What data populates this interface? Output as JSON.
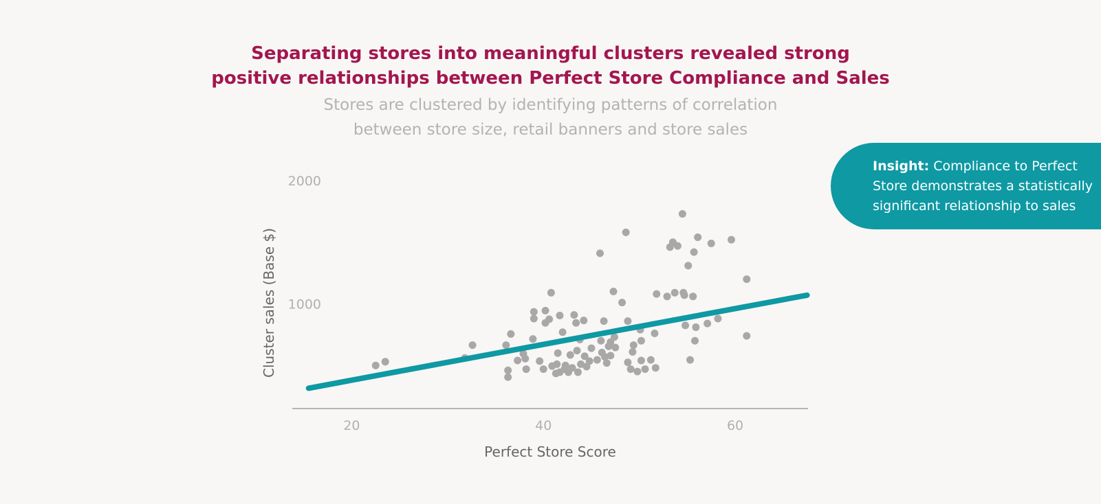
{
  "header": {
    "title_line1": "Separating stores into meaningful clusters revealed strong",
    "title_line2": "positive relationships between Perfect Store Compliance and Sales",
    "subtitle_line1": "Stores are clustered by identifying patterns of correlation",
    "subtitle_line2": "between store size, retail banners and store sales"
  },
  "insight": {
    "bold": "Insight:",
    "text": " Compliance to Perfect Store demonstrates a statistically significant relationship to sales"
  },
  "colors": {
    "title": "#a3164f",
    "points": "#a8a8a8",
    "trendline": "#0e99a3",
    "insight_bg": "#0e99a3"
  },
  "chart_data": {
    "type": "scatter",
    "xlabel": "Perfect Store Score",
    "ylabel": "Cluster sales (Base $)",
    "x_ticks": [
      20,
      40,
      60
    ],
    "y_ticks": [
      1000,
      2000
    ],
    "xlim": [
      13.8,
      67.6
    ],
    "ylim": [
      150,
      2000
    ],
    "grid": false,
    "trendline": {
      "x": [
        15.5,
        67.5
      ],
      "y": [
        315,
        1070
      ]
    },
    "points": [
      [
        22.5,
        500
      ],
      [
        23.5,
        530
      ],
      [
        31.8,
        560
      ],
      [
        32.6,
        665
      ],
      [
        36.1,
        665
      ],
      [
        36.6,
        755
      ],
      [
        36.3,
        460
      ],
      [
        36.3,
        405
      ],
      [
        37.3,
        540
      ],
      [
        37.9,
        595
      ],
      [
        38.1,
        555
      ],
      [
        38.2,
        470
      ],
      [
        38.9,
        715
      ],
      [
        39.0,
        935
      ],
      [
        39.0,
        880
      ],
      [
        39.6,
        535
      ],
      [
        40.0,
        470
      ],
      [
        40.2,
        945
      ],
      [
        40.2,
        845
      ],
      [
        40.6,
        875
      ],
      [
        40.8,
        1090
      ],
      [
        40.9,
        495
      ],
      [
        41.3,
        435
      ],
      [
        41.4,
        510
      ],
      [
        41.5,
        600
      ],
      [
        41.7,
        905
      ],
      [
        41.7,
        445
      ],
      [
        42.0,
        770
      ],
      [
        42.2,
        470
      ],
      [
        42.3,
        500
      ],
      [
        42.6,
        445
      ],
      [
        42.8,
        585
      ],
      [
        43.0,
        480
      ],
      [
        43.2,
        910
      ],
      [
        43.4,
        845
      ],
      [
        43.5,
        620
      ],
      [
        43.6,
        445
      ],
      [
        43.8,
        710
      ],
      [
        43.9,
        510
      ],
      [
        44.2,
        865
      ],
      [
        44.3,
        575
      ],
      [
        44.5,
        490
      ],
      [
        44.8,
        535
      ],
      [
        45.0,
        640
      ],
      [
        45.6,
        545
      ],
      [
        45.9,
        1410
      ],
      [
        46.0,
        700
      ],
      [
        46.1,
        605
      ],
      [
        46.3,
        860
      ],
      [
        46.4,
        570
      ],
      [
        46.6,
        520
      ],
      [
        46.8,
        655
      ],
      [
        47.0,
        690
      ],
      [
        47.3,
        1100
      ],
      [
        47.5,
        645
      ],
      [
        47.0,
        580
      ],
      [
        47.4,
        730
      ],
      [
        48.2,
        1010
      ],
      [
        48.6,
        1580
      ],
      [
        48.8,
        860
      ],
      [
        48.8,
        525
      ],
      [
        49.1,
        470
      ],
      [
        49.4,
        665
      ],
      [
        49.3,
        610
      ],
      [
        49.8,
        450
      ],
      [
        50.1,
        790
      ],
      [
        50.2,
        700
      ],
      [
        50.2,
        540
      ],
      [
        50.6,
        470
      ],
      [
        51.2,
        545
      ],
      [
        51.6,
        760
      ],
      [
        51.7,
        480
      ],
      [
        51.8,
        1080
      ],
      [
        52.9,
        1060
      ],
      [
        53.2,
        1460
      ],
      [
        53.5,
        1500
      ],
      [
        53.7,
        1090
      ],
      [
        54.0,
        1470
      ],
      [
        54.5,
        1730
      ],
      [
        54.7,
        1070
      ],
      [
        54.6,
        1090
      ],
      [
        54.8,
        825
      ],
      [
        55.1,
        1310
      ],
      [
        55.3,
        545
      ],
      [
        55.6,
        1060
      ],
      [
        55.7,
        1420
      ],
      [
        55.8,
        700
      ],
      [
        55.9,
        810
      ],
      [
        56.1,
        1540
      ],
      [
        57.1,
        840
      ],
      [
        57.5,
        1490
      ],
      [
        58.2,
        880
      ],
      [
        59.6,
        1520
      ],
      [
        61.2,
        1200
      ],
      [
        61.2,
        740
      ]
    ]
  }
}
